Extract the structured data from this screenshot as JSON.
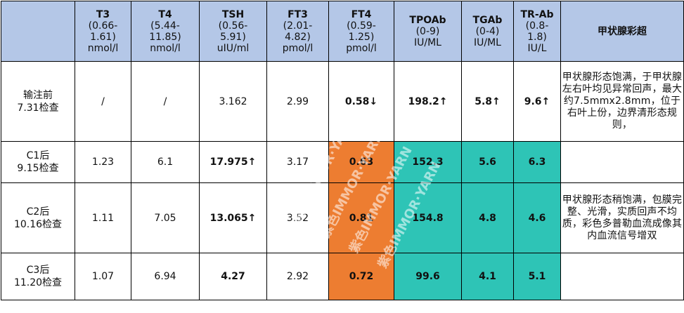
{
  "headers": [
    {
      "name": "T3",
      "range": "(0.66-\n1.61)",
      "unit": "nmol/l"
    },
    {
      "name": "T4",
      "range": "(5.44-\n11.85)",
      "unit": "nmol/l"
    },
    {
      "name": "TSH",
      "range": "(0.56-\n5.91)",
      "unit": "uIU/ml"
    },
    {
      "name": "FT3",
      "range": "(2.01-\n4.82)",
      "unit": "pmol/l"
    },
    {
      "name": "FT4",
      "range": "(0.59-\n1.25)",
      "unit": "pmol/l"
    },
    {
      "name": "TPOAb",
      "range": "(0-9)",
      "unit": "IU/ML"
    },
    {
      "name": "TGAb",
      "range": "(0-4)",
      "unit": "IU/ML"
    },
    {
      "name": "TR-Ab",
      "range": "(0.8-\n1.8)",
      "unit": "IU/L"
    }
  ],
  "ultrasound_header": "甲状腺彩超",
  "rows": [
    {
      "label_line1": "输注前",
      "label_line2": "7.31检查",
      "t3": "/",
      "t4": "/",
      "tsh": "3.162",
      "ft3": "2.99",
      "ft4": "0.58↓",
      "tpoab": "198.2↑",
      "tgab": "5.8↑",
      "trab": "9.6↑",
      "note": "甲状腺形态饱满，于甲状腺左右叶均见异常回声，最大约7.5mmx2.8mm，位于右叶上份，边界清形态规则，"
    },
    {
      "label_line1": "C1后",
      "label_line2": "9.15检查",
      "t3": "1.23",
      "t4": "6.1",
      "tsh": "17.975↑",
      "ft3": "3.17",
      "ft4": "0.63",
      "tpoab": "152.3",
      "tgab": "5.6",
      "trab": "6.3",
      "note": ""
    },
    {
      "label_line1": "C2后",
      "label_line2": "10.16检查",
      "t3": "1.11",
      "t4": "7.05",
      "tsh": "13.065↑",
      "ft3": "3.52",
      "ft4": "0.81",
      "tpoab": "154.8",
      "tgab": "4.8",
      "trab": "4.6",
      "note": "甲状腺形态稍饱满，包膜完整、光滑，实质回声不均质，彩色多普勒血流成像其内血流信号增双"
    },
    {
      "label_line1": "C3后",
      "label_line2": "11.20检查",
      "t3": "1.07",
      "t4": "6.94",
      "tsh": "4.27",
      "ft3": "2.92",
      "ft4": "0.72",
      "tpoab": "99.6",
      "tgab": "4.1",
      "trab": "5.1",
      "note": ""
    }
  ],
  "watermark": [
    "紫色IMMOR·YARN",
    "紫色IMMOR·YARN",
    "紫色IMMOR·YARN",
    "紫色IMMOR·YARN"
  ],
  "colors": {
    "header_bg": "#b4c7e7",
    "orange": "#ed7d31",
    "teal": "#2ec4b6",
    "red": "#ee1111",
    "blue": "#4472c4"
  }
}
